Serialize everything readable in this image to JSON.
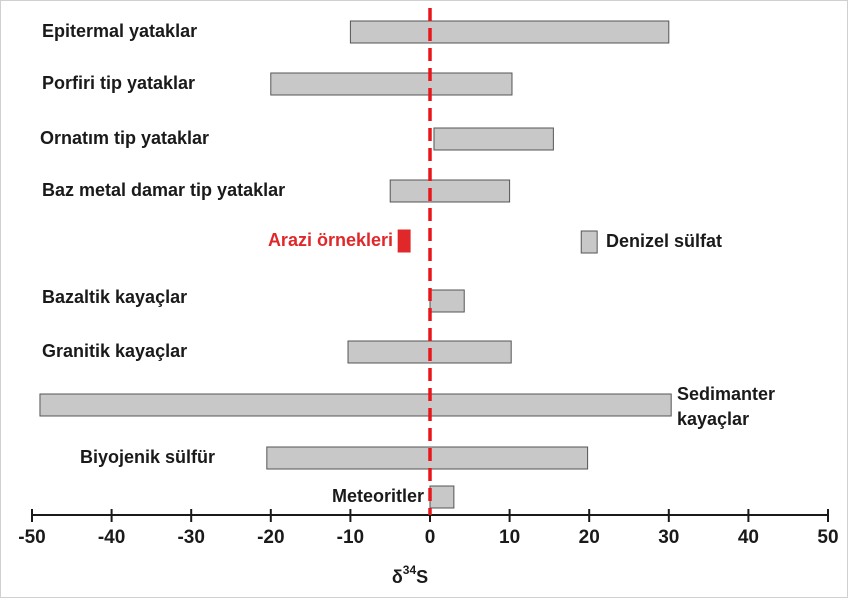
{
  "chart_data": {
    "type": "range-bar",
    "categories": [
      "Epitermal yataklar",
      "Porfiri tip yataklar",
      "Ornatım tip yataklar",
      "Baz metal damar tip yataklar",
      "Arazi örnekleri",
      "Denizel sülfat",
      "Bazaltik kayaçlar",
      "Granitik kayaçlar",
      [
        "Sedimanter",
        "kayaçlar"
      ],
      "Biyojenik sülfür",
      "Meteoritler"
    ],
    "low": [
      -10,
      -20,
      0.5,
      -5,
      -4,
      19,
      0,
      -10.3,
      -49,
      -20.5,
      0
    ],
    "high": [
      30,
      10.3,
      15.5,
      10,
      -2.5,
      21,
      4.3,
      10.2,
      30.3,
      19.8,
      3
    ],
    "colors": [
      "#c8c8c8",
      "#c8c8c8",
      "#c8c8c8",
      "#c8c8c8",
      "#e0282a",
      "#c8c8c8",
      "#c8c8c8",
      "#c8c8c8",
      "#c8c8c8",
      "#c8c8c8",
      "#c8c8c8"
    ],
    "reference_line": 0,
    "reference_color": "#e8161b",
    "xlim": [
      -50,
      50
    ],
    "xticks": [
      -50,
      -40,
      -30,
      -20,
      -10,
      0,
      10,
      20,
      30,
      40,
      50
    ],
    "xlabel": {
      "base": "δ",
      "sup": "34",
      "after": "S"
    }
  }
}
